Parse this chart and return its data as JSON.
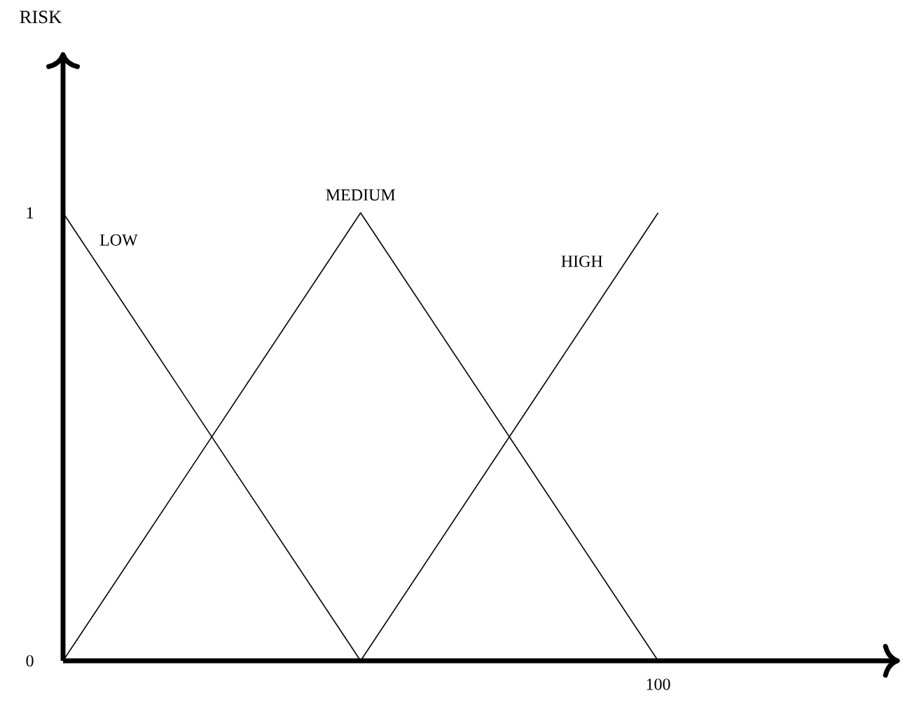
{
  "chart_data": {
    "type": "line",
    "ylabel": "RISK",
    "categories": [
      null,
      null,
      "100"
    ],
    "ylim": [
      0,
      1.35
    ],
    "yticks": [
      0,
      1
    ],
    "grid": false,
    "legend": false,
    "marker": "none",
    "line_style": "solid",
    "series": [
      {
        "name": "LOW",
        "color": "#000000",
        "values": [
          1,
          0,
          null
        ]
      },
      {
        "name": "MEDIUM",
        "color": "#000000",
        "values": [
          0,
          1,
          0
        ]
      },
      {
        "name": "HIGH",
        "color": "#000000",
        "values": [
          null,
          0,
          1
        ]
      }
    ]
  }
}
